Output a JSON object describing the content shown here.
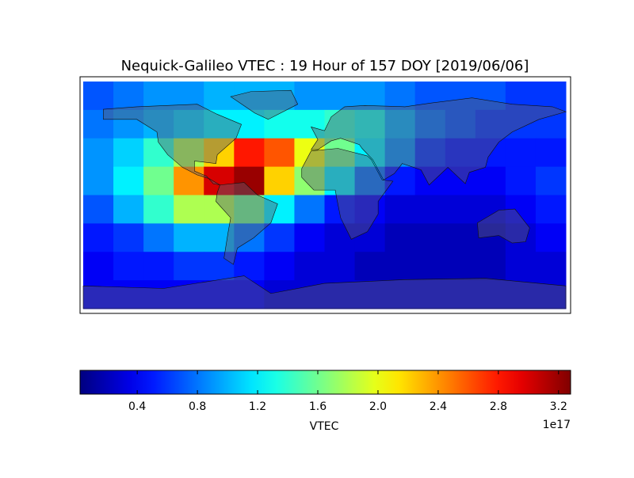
{
  "chart_data": {
    "type": "heatmap",
    "title": "Nequick-Galileo VTEC : 19 Hour of 157 DOY [2019/06/06]",
    "colorbar_label": "VTEC",
    "colorbar_offset": "1e17",
    "colormap": "jet",
    "clim": [
      0.02,
      3.28
    ],
    "cticks": [
      0.4,
      0.8,
      1.2,
      1.6,
      {
        "value": 2,
        "label": "2.0"
      },
      2.4,
      2.8,
      3.2
    ],
    "z": [
      [
        0.7,
        0.8,
        0.9,
        0.9,
        1.0,
        1.0,
        1.0,
        0.9,
        0.9,
        0.9,
        0.8,
        0.7,
        0.7,
        0.7,
        0.6,
        0.6
      ],
      [
        0.8,
        0.9,
        1.0,
        1.1,
        1.2,
        1.2,
        1.3,
        1.3,
        1.4,
        1.3,
        1.0,
        0.8,
        0.7,
        0.6,
        0.6,
        0.6
      ],
      [
        0.9,
        1.1,
        1.4,
        1.8,
        2.2,
        2.8,
        2.6,
        2.0,
        1.6,
        1.2,
        0.9,
        0.6,
        0.5,
        0.5,
        0.5,
        0.5
      ],
      [
        0.9,
        1.2,
        1.6,
        2.4,
        3.0,
        3.2,
        2.2,
        1.7,
        1.2,
        0.8,
        0.5,
        0.4,
        0.4,
        0.4,
        0.5,
        0.6
      ],
      [
        0.7,
        1.0,
        1.4,
        1.8,
        1.8,
        1.6,
        1.2,
        0.8,
        0.5,
        0.4,
        0.3,
        0.3,
        0.3,
        0.3,
        0.4,
        0.5
      ],
      [
        0.5,
        0.6,
        0.8,
        1.0,
        1.0,
        0.8,
        0.6,
        0.4,
        0.3,
        0.3,
        0.2,
        0.2,
        0.2,
        0.2,
        0.3,
        0.4
      ],
      [
        0.4,
        0.5,
        0.5,
        0.6,
        0.6,
        0.5,
        0.4,
        0.3,
        0.3,
        0.2,
        0.2,
        0.2,
        0.2,
        0.2,
        0.3,
        0.3
      ],
      [
        0.4,
        0.4,
        0.4,
        0.4,
        0.4,
        0.4,
        0.3,
        0.3,
        0.3,
        0.3,
        0.3,
        0.3,
        0.3,
        0.3,
        0.3,
        0.3
      ]
    ]
  }
}
